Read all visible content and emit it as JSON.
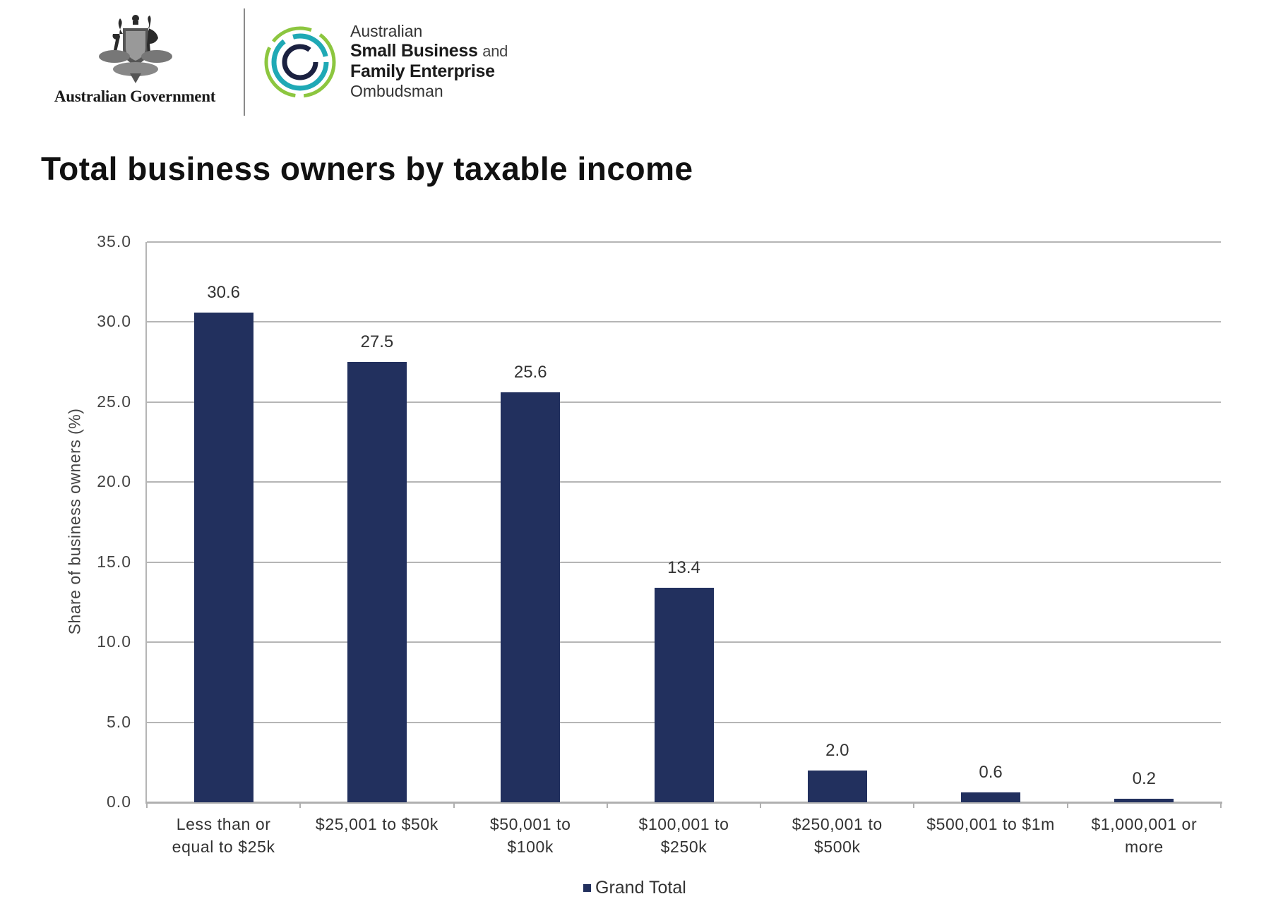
{
  "header": {
    "gov_logo": {
      "icon": "coat-of-arms-icon",
      "text": "Australian Government"
    },
    "ombudsman_logo": {
      "icon": "ombudsman-rings-icon",
      "line1": "Australian",
      "line2": "Small Business",
      "line2_suffix": "and",
      "line3": "Family Enterprise",
      "line4": "Ombudsman",
      "colors": {
        "outer": "#8cc63f",
        "middle": "#1fa9b5",
        "inner": "#1b2140"
      }
    }
  },
  "chart_data": {
    "type": "bar",
    "title": "Total business owners by taxable income",
    "xlabel": "",
    "ylabel": "Share of business owners (%)",
    "ylim": [
      0,
      35
    ],
    "yticks": [
      "0.0",
      "5.0",
      "10.0",
      "15.0",
      "20.0",
      "25.0",
      "30.0",
      "35.0"
    ],
    "grid": true,
    "legend_position": "bottom",
    "categories": [
      "Less than or equal to $25k",
      "$25,001 to $50k",
      "$50,001 to $100k",
      "$100,001 to $250k",
      "$250,001 to $500k",
      "$500,001 to $1m",
      "$1,000,001 or more"
    ],
    "category_lines": [
      [
        "Less than or",
        "equal to $25k"
      ],
      [
        "$25,001 to $50k",
        ""
      ],
      [
        "$50,001 to",
        "$100k"
      ],
      [
        "$100,001 to",
        "$250k"
      ],
      [
        "$250,001 to",
        "$500k"
      ],
      [
        "$500,001 to $1m",
        ""
      ],
      [
        "$1,000,001 or",
        "more"
      ]
    ],
    "series": [
      {
        "name": "Grand Total",
        "color": "#22305e",
        "values": [
          30.6,
          27.5,
          25.6,
          13.4,
          2.0,
          0.6,
          0.2
        ],
        "value_labels": [
          "30.6",
          "27.5",
          "25.6",
          "13.4",
          "2.0",
          "0.6",
          "0.2"
        ]
      }
    ]
  }
}
